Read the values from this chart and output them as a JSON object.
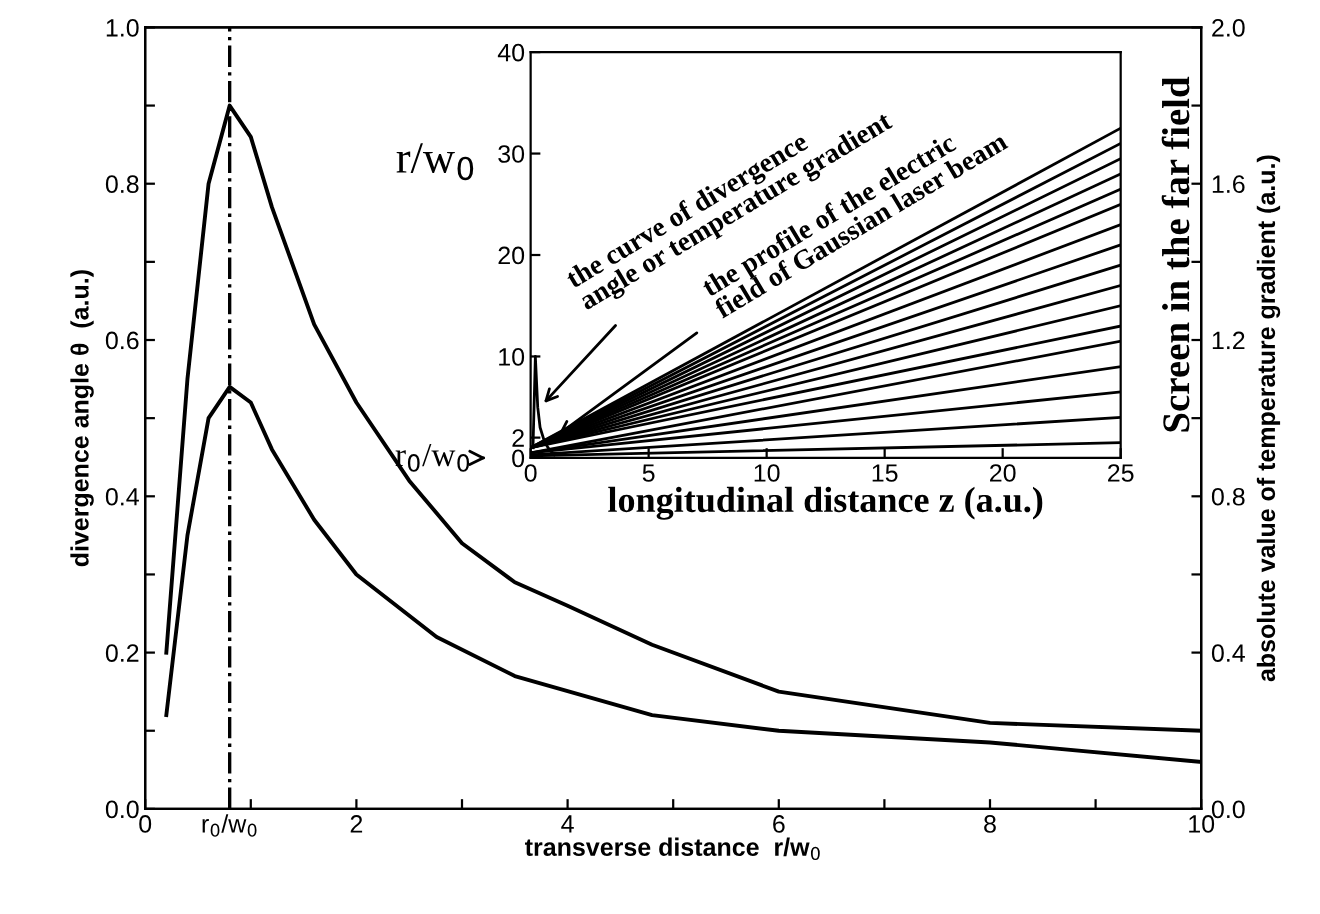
{
  "chart_data": [
    {
      "type": "line",
      "xlabel": "transverse distance  r/w$_{0}$",
      "ylabel": "divergence angle θ  (a.u.)",
      "y2label": "absolute value of temperature gradient (a.u.)",
      "xlim": [
        0,
        10
      ],
      "xticks": [
        0,
        {
          "value": 0.8,
          "label": "r$_{0}$/w$_{0}$"
        },
        {
          "value": 1,
          "label": null
        },
        2,
        {
          "value": 3,
          "label": null
        },
        4,
        {
          "value": 5,
          "label": null
        },
        6,
        {
          "value": 7,
          "label": null
        },
        8,
        {
          "value": 9,
          "label": null
        },
        10
      ],
      "ylim": [
        0,
        1
      ],
      "yticks": [
        "0.0",
        {
          "value": 0.1,
          "label": null
        },
        0.2,
        {
          "value": 0.3,
          "label": null
        },
        0.4,
        {
          "value": 0.5,
          "label": null
        },
        0.6,
        {
          "value": 0.7,
          "label": null
        },
        0.8,
        {
          "value": 0.9,
          "label": null
        },
        "1.0"
      ],
      "y2lim": [
        0,
        2
      ],
      "y2ticks": [
        "0.0",
        {
          "value": 0.2,
          "label": null
        },
        0.4,
        {
          "value": 0.6,
          "label": null
        },
        0.8,
        {
          "value": 1.0,
          "label": null
        },
        1.2,
        {
          "value": 1.4,
          "label": null
        },
        1.6,
        {
          "value": 1.8,
          "label": null
        },
        "2.0"
      ],
      "series": [
        {
          "color": "#000000",
          "x": [
            0.2,
            0.4,
            0.6,
            0.8,
            1.0,
            1.2,
            1.6,
            2.0,
            2.5,
            3.0,
            3.5,
            4.0,
            4.8,
            6,
            8,
            10
          ],
          "values": [
            0.2,
            0.55,
            0.8,
            0.9,
            0.86,
            0.77,
            0.62,
            0.52,
            0.42,
            0.34,
            0.29,
            0.26,
            0.21,
            0.15,
            0.11,
            0.1
          ]
        },
        {
          "color": "#000000",
          "axis": "y2",
          "x": [
            0.2,
            0.4,
            0.6,
            0.8,
            1.0,
            1.2,
            1.6,
            2.0,
            2.76,
            3.5,
            4.8,
            6,
            8,
            10
          ],
          "values": [
            0.24,
            0.7,
            1.0,
            1.08,
            1.04,
            0.92,
            0.74,
            0.6,
            0.44,
            0.34,
            0.24,
            0.2,
            0.17,
            0.12
          ]
        }
      ],
      "ref_lines": [
        {
          "axis": "x",
          "value": 0.8,
          "line_style": "dashdot",
          "color": "#000000"
        }
      ],
      "line_style": "solid",
      "marker": "none",
      "grid": false,
      "legend": false
    },
    {
      "type": "line",
      "xlabel": "longitudinal distance z (a.u.)",
      "ylabel": "r/w$_{0}$",
      "xlim": [
        0,
        25
      ],
      "xticks": [
        0,
        5,
        10,
        15,
        20,
        25
      ],
      "ylim": [
        0,
        40
      ],
      "yticks": [
        0,
        2,
        10,
        20,
        30,
        40
      ],
      "annotations": [
        "Screen in the far field",
        {
          "text": "r$_{0}$/w$_{0}$",
          "x": 0,
          "y": 0
        },
        {
          "text": "the curve of divergence\nangle or temperature gradient",
          "x": 0.4,
          "y": 5
        },
        {
          "text": "the profile of the electric\nfield of Gaussian laser beam",
          "x": 1,
          "y": 2
        }
      ],
      "series": [
        {
          "color": "#000000",
          "x": [
            0.1,
            0.2,
            0.3,
            0.4,
            0.6,
            0.8,
            1.0
          ],
          "values": [
            1,
            10,
            5,
            3,
            1.5,
            0.8,
            0.3
          ]
        },
        {
          "color": "#000000",
          "x": [
            0,
            25
          ],
          "values": [
            1,
            32.5
          ]
        },
        {
          "color": "#000000",
          "x": [
            0,
            25
          ],
          "values": [
            1,
            31
          ]
        },
        {
          "color": "#000000",
          "x": [
            0,
            25
          ],
          "values": [
            1,
            29.5
          ]
        },
        {
          "color": "#000000",
          "x": [
            0,
            25
          ],
          "values": [
            1,
            28
          ]
        },
        {
          "color": "#000000",
          "x": [
            0,
            25
          ],
          "values": [
            1,
            26.5
          ]
        },
        {
          "color": "#000000",
          "x": [
            0,
            25
          ],
          "values": [
            1,
            25
          ]
        },
        {
          "color": "#000000",
          "x": [
            0,
            25
          ],
          "values": [
            1,
            23
          ]
        },
        {
          "color": "#000000",
          "x": [
            0,
            25
          ],
          "values": [
            1,
            21
          ]
        },
        {
          "color": "#000000",
          "x": [
            0,
            25
          ],
          "values": [
            1,
            19
          ]
        },
        {
          "color": "#000000",
          "x": [
            0,
            25
          ],
          "values": [
            1,
            17
          ]
        },
        {
          "color": "#000000",
          "x": [
            0,
            25
          ],
          "values": [
            1,
            15
          ]
        },
        {
          "color": "#000000",
          "x": [
            0,
            25
          ],
          "values": [
            1,
            13
          ]
        },
        {
          "color": "#000000",
          "x": [
            0,
            25
          ],
          "values": [
            0.5,
            11.5
          ]
        },
        {
          "color": "#000000",
          "x": [
            0,
            25
          ],
          "values": [
            0.5,
            9
          ]
        },
        {
          "color": "#000000",
          "x": [
            0,
            25
          ],
          "values": [
            0.5,
            6.5
          ]
        },
        {
          "color": "#000000",
          "x": [
            0,
            25
          ],
          "values": [
            0.3,
            4
          ]
        },
        {
          "color": "#000000",
          "x": [
            0,
            25
          ],
          "values": [
            0.2,
            1.5
          ]
        }
      ],
      "line_style": "solid",
      "marker": "none",
      "grid": false,
      "legend": false
    }
  ]
}
